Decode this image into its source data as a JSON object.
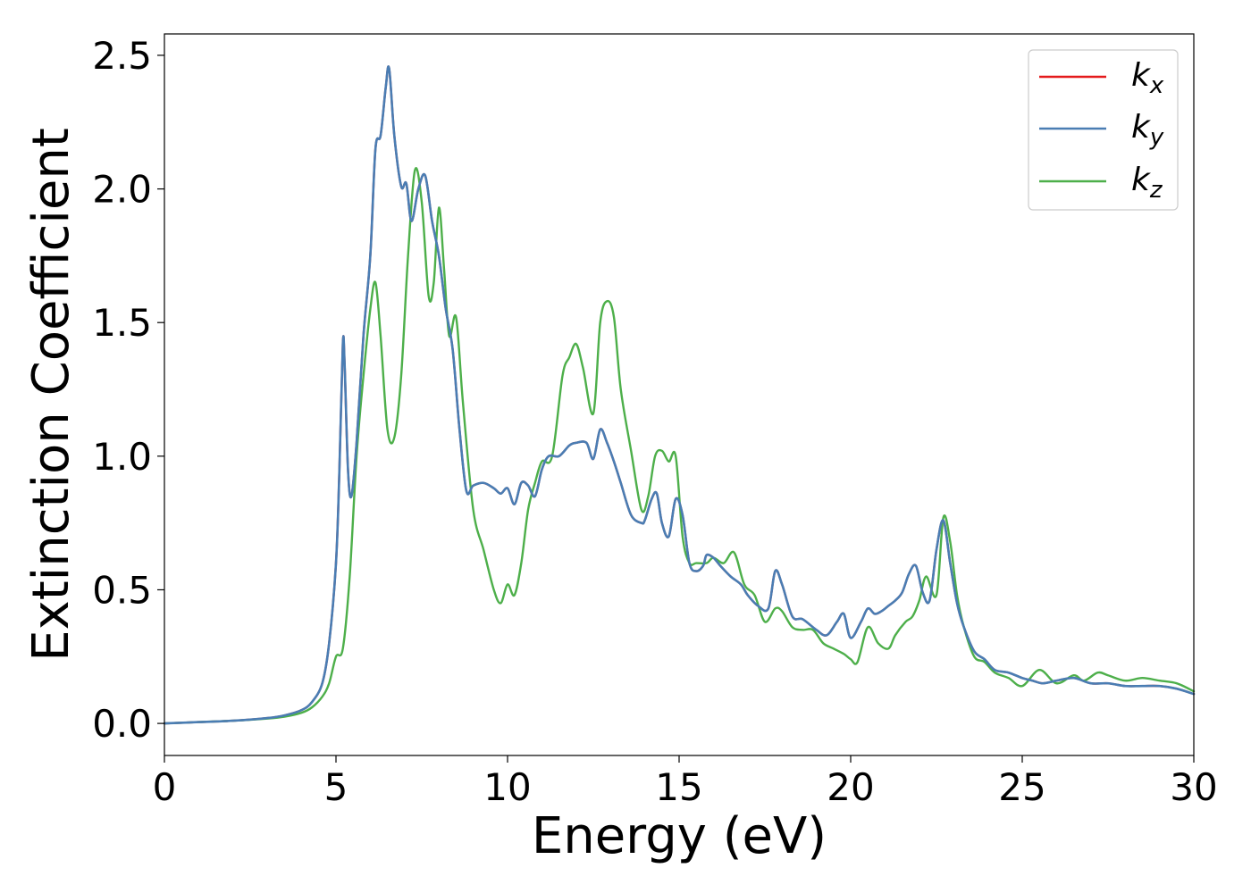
{
  "chart_data": {
    "type": "line",
    "title": "",
    "xlabel": "Energy (eV)",
    "ylabel": "Extinction Coefficient",
    "xlim": [
      0,
      30
    ],
    "ylim": [
      -0.12,
      2.58
    ],
    "xticks": [
      0,
      5,
      10,
      15,
      20,
      25,
      30
    ],
    "xtick_labels": [
      "0",
      "5",
      "10",
      "15",
      "20",
      "25",
      "30"
    ],
    "yticks": [
      0.0,
      0.5,
      1.0,
      1.5,
      2.0,
      2.5
    ],
    "ytick_labels": [
      "0.0",
      "0.5",
      "1.0",
      "1.5",
      "2.0",
      "2.5"
    ],
    "grid": false,
    "legend_position": "top-right",
    "series": [
      {
        "name": "k_x",
        "legend_base": "k",
        "legend_sub": "x",
        "color": "#e41a1c",
        "x": [
          0,
          1,
          2,
          3,
          3.5,
          4,
          4.3,
          4.6,
          4.8,
          5.0,
          5.1,
          5.2,
          5.25,
          5.35,
          5.45,
          5.6,
          5.8,
          6.0,
          6.15,
          6.3,
          6.45,
          6.55,
          6.7,
          6.9,
          7.05,
          7.2,
          7.4,
          7.6,
          7.8,
          8.0,
          8.2,
          8.4,
          8.6,
          8.8,
          9.0,
          9.3,
          9.6,
          9.8,
          10.0,
          10.2,
          10.4,
          10.6,
          10.8,
          11.0,
          11.2,
          11.5,
          11.8,
          12.0,
          12.3,
          12.5,
          12.7,
          12.9,
          13.1,
          13.3,
          13.6,
          13.9,
          14.0,
          14.2,
          14.35,
          14.5,
          14.7,
          14.9,
          15.1,
          15.3,
          15.5,
          15.7,
          15.8,
          16.0,
          16.2,
          16.5,
          16.8,
          17.0,
          17.3,
          17.6,
          17.8,
          18.0,
          18.3,
          18.6,
          19.0,
          19.3,
          19.6,
          19.8,
          20.0,
          20.3,
          20.5,
          20.7,
          20.9,
          21.1,
          21.3,
          21.5,
          21.7,
          21.9,
          22.1,
          22.3,
          22.5,
          22.7,
          22.9,
          23.1,
          23.3,
          23.6,
          23.9,
          24.2,
          24.6,
          25.0,
          25.3,
          25.6,
          26.0,
          26.5,
          27.0,
          27.5,
          28.0,
          28.5,
          29.0,
          29.5,
          30.0
        ],
        "y": [
          0.0,
          0.005,
          0.01,
          0.02,
          0.03,
          0.05,
          0.08,
          0.15,
          0.3,
          0.6,
          0.95,
          1.42,
          1.35,
          0.95,
          0.85,
          1.05,
          1.45,
          1.75,
          2.15,
          2.2,
          2.38,
          2.45,
          2.2,
          2.01,
          2.02,
          1.88,
          2.0,
          2.05,
          1.88,
          1.75,
          1.55,
          1.4,
          1.1,
          0.87,
          0.89,
          0.9,
          0.88,
          0.86,
          0.88,
          0.82,
          0.9,
          0.89,
          0.85,
          0.95,
          1.0,
          1.0,
          1.04,
          1.05,
          1.05,
          0.99,
          1.1,
          1.05,
          0.98,
          0.9,
          0.78,
          0.75,
          0.76,
          0.84,
          0.86,
          0.75,
          0.7,
          0.84,
          0.78,
          0.6,
          0.57,
          0.59,
          0.63,
          0.62,
          0.59,
          0.55,
          0.52,
          0.48,
          0.44,
          0.43,
          0.57,
          0.52,
          0.4,
          0.39,
          0.35,
          0.33,
          0.38,
          0.41,
          0.32,
          0.38,
          0.43,
          0.41,
          0.42,
          0.44,
          0.46,
          0.49,
          0.56,
          0.59,
          0.49,
          0.46,
          0.65,
          0.76,
          0.6,
          0.45,
          0.36,
          0.27,
          0.24,
          0.2,
          0.19,
          0.17,
          0.16,
          0.15,
          0.16,
          0.17,
          0.15,
          0.15,
          0.14,
          0.14,
          0.14,
          0.13,
          0.11
        ]
      },
      {
        "name": "k_y",
        "legend_base": "k",
        "legend_sub": "y",
        "color": "#4a7db3",
        "x": [
          0,
          1,
          2,
          3,
          3.5,
          4,
          4.3,
          4.6,
          4.8,
          5.0,
          5.1,
          5.2,
          5.25,
          5.35,
          5.45,
          5.6,
          5.8,
          6.0,
          6.15,
          6.3,
          6.45,
          6.55,
          6.7,
          6.9,
          7.05,
          7.2,
          7.4,
          7.6,
          7.8,
          8.0,
          8.2,
          8.4,
          8.6,
          8.8,
          9.0,
          9.3,
          9.6,
          9.8,
          10.0,
          10.2,
          10.4,
          10.6,
          10.8,
          11.0,
          11.2,
          11.5,
          11.8,
          12.0,
          12.3,
          12.5,
          12.7,
          12.9,
          13.1,
          13.3,
          13.6,
          13.9,
          14.0,
          14.2,
          14.35,
          14.5,
          14.7,
          14.9,
          15.1,
          15.3,
          15.5,
          15.7,
          15.8,
          16.0,
          16.2,
          16.5,
          16.8,
          17.0,
          17.3,
          17.6,
          17.8,
          18.0,
          18.3,
          18.6,
          19.0,
          19.3,
          19.6,
          19.8,
          20.0,
          20.3,
          20.5,
          20.7,
          20.9,
          21.1,
          21.3,
          21.5,
          21.7,
          21.9,
          22.1,
          22.3,
          22.5,
          22.7,
          22.9,
          23.1,
          23.3,
          23.6,
          23.9,
          24.2,
          24.6,
          25.0,
          25.3,
          25.6,
          26.0,
          26.5,
          27.0,
          27.5,
          28.0,
          28.5,
          29.0,
          29.5,
          30.0
        ],
        "y": [
          0.0,
          0.005,
          0.01,
          0.02,
          0.03,
          0.05,
          0.08,
          0.15,
          0.3,
          0.6,
          0.95,
          1.42,
          1.35,
          0.95,
          0.85,
          1.05,
          1.45,
          1.75,
          2.15,
          2.2,
          2.38,
          2.45,
          2.2,
          2.01,
          2.02,
          1.88,
          2.0,
          2.05,
          1.88,
          1.75,
          1.55,
          1.4,
          1.1,
          0.87,
          0.89,
          0.9,
          0.88,
          0.86,
          0.88,
          0.82,
          0.9,
          0.89,
          0.85,
          0.95,
          1.0,
          1.0,
          1.04,
          1.05,
          1.05,
          0.99,
          1.1,
          1.05,
          0.98,
          0.9,
          0.78,
          0.75,
          0.76,
          0.84,
          0.86,
          0.75,
          0.7,
          0.84,
          0.78,
          0.6,
          0.57,
          0.59,
          0.63,
          0.62,
          0.59,
          0.55,
          0.52,
          0.48,
          0.44,
          0.43,
          0.57,
          0.52,
          0.4,
          0.39,
          0.35,
          0.33,
          0.38,
          0.41,
          0.32,
          0.38,
          0.43,
          0.41,
          0.42,
          0.44,
          0.46,
          0.49,
          0.56,
          0.59,
          0.49,
          0.46,
          0.65,
          0.76,
          0.6,
          0.45,
          0.36,
          0.27,
          0.24,
          0.2,
          0.19,
          0.17,
          0.16,
          0.15,
          0.16,
          0.17,
          0.15,
          0.15,
          0.14,
          0.14,
          0.14,
          0.13,
          0.11
        ]
      },
      {
        "name": "k_z",
        "legend_base": "k",
        "legend_sub": "z",
        "color": "#4daf4a",
        "x": [
          0,
          1,
          2,
          3,
          3.5,
          4,
          4.3,
          4.6,
          4.8,
          5.0,
          5.2,
          5.4,
          5.6,
          5.8,
          6.0,
          6.15,
          6.3,
          6.5,
          6.7,
          6.9,
          7.1,
          7.3,
          7.5,
          7.7,
          7.85,
          8.0,
          8.15,
          8.3,
          8.5,
          8.7,
          9.0,
          9.3,
          9.6,
          9.8,
          10.0,
          10.2,
          10.4,
          10.6,
          10.8,
          11.0,
          11.3,
          11.6,
          11.8,
          12.0,
          12.2,
          12.5,
          12.7,
          12.9,
          13.1,
          13.3,
          13.6,
          13.9,
          14.1,
          14.3,
          14.5,
          14.7,
          14.9,
          15.1,
          15.3,
          15.5,
          15.8,
          16.0,
          16.3,
          16.6,
          16.9,
          17.2,
          17.5,
          17.8,
          18.0,
          18.3,
          18.6,
          18.9,
          19.2,
          19.5,
          19.8,
          20.0,
          20.2,
          20.5,
          20.8,
          21.1,
          21.3,
          21.6,
          21.8,
          22.0,
          22.2,
          22.5,
          22.7,
          22.9,
          23.1,
          23.3,
          23.6,
          23.9,
          24.2,
          24.6,
          25.0,
          25.5,
          26.0,
          26.5,
          26.8,
          27.2,
          27.5,
          28.0,
          28.5,
          29.0,
          29.5,
          30.0
        ],
        "y": [
          0.0,
          0.005,
          0.01,
          0.018,
          0.025,
          0.04,
          0.06,
          0.1,
          0.15,
          0.25,
          0.28,
          0.55,
          1.0,
          1.3,
          1.55,
          1.65,
          1.45,
          1.1,
          1.07,
          1.3,
          1.75,
          2.07,
          1.95,
          1.6,
          1.65,
          1.93,
          1.7,
          1.45,
          1.52,
          1.2,
          0.8,
          0.65,
          0.5,
          0.45,
          0.52,
          0.48,
          0.6,
          0.8,
          0.9,
          0.98,
          1.0,
          1.3,
          1.37,
          1.42,
          1.33,
          1.16,
          1.5,
          1.58,
          1.52,
          1.25,
          1.02,
          0.8,
          0.85,
          1.0,
          1.02,
          0.98,
          1.0,
          0.7,
          0.6,
          0.6,
          0.6,
          0.62,
          0.6,
          0.64,
          0.52,
          0.48,
          0.38,
          0.43,
          0.42,
          0.36,
          0.35,
          0.35,
          0.3,
          0.28,
          0.26,
          0.24,
          0.23,
          0.36,
          0.3,
          0.28,
          0.33,
          0.38,
          0.4,
          0.46,
          0.55,
          0.48,
          0.77,
          0.68,
          0.48,
          0.36,
          0.25,
          0.23,
          0.19,
          0.17,
          0.14,
          0.2,
          0.15,
          0.18,
          0.16,
          0.19,
          0.18,
          0.16,
          0.17,
          0.16,
          0.15,
          0.12
        ]
      }
    ]
  }
}
